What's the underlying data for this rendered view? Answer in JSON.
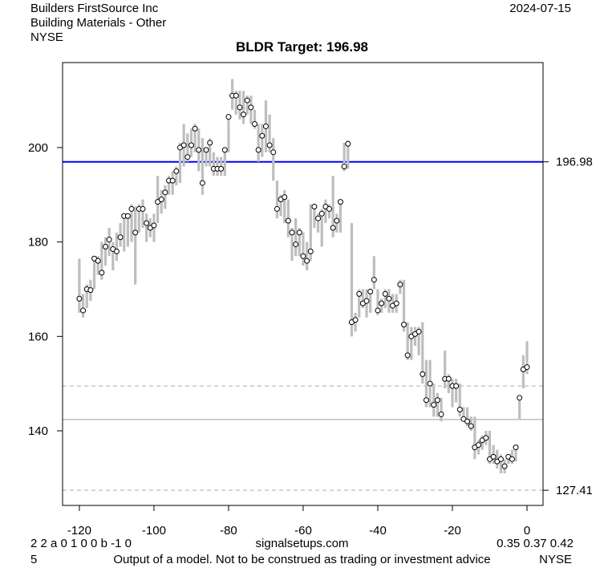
{
  "header": {
    "company": "Builders FirstSource Inc",
    "industry": "Building Materials - Other",
    "exchange": "NYSE",
    "date": "2024-07-15"
  },
  "footer": {
    "codes": "2 2 a 0 1 0 0 b -1 0",
    "site": "signalsetups.com",
    "values": "0.35 0.37 0.42",
    "number": "5",
    "disclaimer": "Output of a model. Not to be construed as trading or investment advice",
    "exchange": "NYSE"
  },
  "chart_data": {
    "type": "ohlc-range",
    "title": "BLDR Target: 196.98",
    "xlabel": "",
    "ylabel": "",
    "xlim": [
      -124.5,
      4.3
    ],
    "ylim": [
      124.2,
      218
    ],
    "x_ticks": [
      -120,
      -100,
      -80,
      -60,
      -40,
      -20,
      0
    ],
    "y_ticks": [
      140,
      160,
      180,
      200
    ],
    "grid": false,
    "colors": {
      "bars": "#bebebe",
      "target": "#0000ff",
      "support": "#bebebe",
      "dashed": "#c8c8c8",
      "points": "#000000"
    },
    "x_start": -120,
    "close": [
      168,
      165.5,
      170,
      169.8,
      176.5,
      176,
      173.5,
      179,
      180.5,
      178.5,
      178,
      181,
      185.5,
      185.5,
      187,
      182,
      187,
      187,
      184,
      183,
      183.5,
      188.5,
      189,
      190.5,
      193,
      193,
      195,
      200,
      200.5,
      198,
      200.5,
      204,
      199.5,
      192.5,
      199.5,
      201,
      195.5,
      195.5,
      195.5,
      199.5,
      206.5,
      211,
      211,
      208.5,
      207,
      210,
      208.5,
      205,
      199.5,
      202.5,
      204.5,
      200.5,
      199,
      187,
      189,
      189.5,
      184.5,
      182,
      179.5,
      182,
      177,
      176,
      178,
      187.5,
      185,
      186,
      187.5,
      187,
      183,
      184.5,
      188.5,
      196,
      200.8,
      163,
      163.5,
      169,
      167,
      167.5,
      169.5,
      172,
      165.5,
      167,
      169,
      168,
      166.5,
      167,
      171,
      162.5,
      156,
      160,
      160.5,
      161,
      152,
      146.5,
      150,
      145.5,
      146.5,
      143.5,
      151,
      151,
      149.5,
      149.5,
      144.5,
      142.5,
      142,
      141,
      136.5,
      137,
      138,
      138.5,
      134,
      134.5,
      133.5,
      134,
      132.5,
      134.5,
      134,
      136.5,
      147,
      153,
      153.5
    ],
    "high": [
      176.5,
      169,
      171,
      172,
      177,
      177,
      180,
      181,
      183,
      180,
      182,
      184,
      186,
      186,
      188,
      187.5,
      188,
      189,
      186,
      185,
      186,
      194,
      191,
      192,
      194,
      195,
      196,
      201,
      205,
      203,
      204,
      205,
      204,
      202,
      200,
      202,
      199,
      198,
      198,
      200,
      207,
      214.5,
      212,
      212,
      212,
      211,
      211,
      208,
      205,
      205,
      210,
      207,
      202,
      193,
      190,
      191,
      189,
      183,
      185,
      183,
      182,
      180,
      188,
      188,
      186,
      187,
      189,
      188,
      194,
      186,
      189,
      201,
      201.5,
      184,
      165,
      170,
      170,
      170,
      170,
      177,
      170,
      168,
      170,
      170,
      169,
      169,
      172,
      172,
      163,
      162,
      162,
      162,
      163,
      155,
      155,
      150,
      148,
      147,
      157,
      152,
      151,
      151,
      150,
      145,
      145,
      143,
      143,
      138,
      139,
      140,
      140,
      137,
      136,
      135,
      134,
      135,
      136,
      137,
      147.5,
      156,
      159
    ],
    "low": [
      165,
      164,
      166,
      167.5,
      170,
      173,
      172,
      175,
      177,
      174,
      176,
      179,
      178,
      179,
      180,
      171,
      182,
      183,
      180,
      181,
      180,
      184,
      186,
      187,
      190,
      190,
      192,
      192.5,
      196,
      197,
      198,
      199,
      195,
      190,
      196,
      196,
      194,
      194,
      194,
      194,
      199,
      208,
      207,
      206,
      205,
      207,
      205,
      204,
      197,
      198,
      199,
      199,
      193,
      185,
      185.5,
      184,
      181,
      176,
      177,
      177,
      175,
      174,
      176,
      183,
      182,
      179,
      184,
      185,
      181,
      182,
      182,
      195,
      195.5,
      160,
      161,
      164,
      166,
      164,
      165,
      170,
      164.5,
      165,
      166,
      165,
      165,
      165,
      169,
      161,
      155,
      155,
      158,
      156,
      150,
      145,
      145,
      143,
      143,
      142,
      149,
      148,
      145,
      146,
      143,
      142,
      141,
      140,
      134,
      135,
      136,
      137,
      133,
      133,
      132,
      131,
      131,
      133,
      133,
      133.5,
      142.5,
      149,
      152
    ],
    "lines": [
      {
        "label": "196.98",
        "value": 196.98,
        "style": "solid",
        "color": "#0000ff"
      },
      {
        "value": 142.4,
        "style": "solid",
        "color": "#bebebe"
      },
      {
        "value": 149.5,
        "style": "dashed",
        "color": "#c8c8c8"
      },
      {
        "label": "127.41",
        "value": 127.41,
        "style": "dashed",
        "color": "#c8c8c8"
      }
    ]
  }
}
